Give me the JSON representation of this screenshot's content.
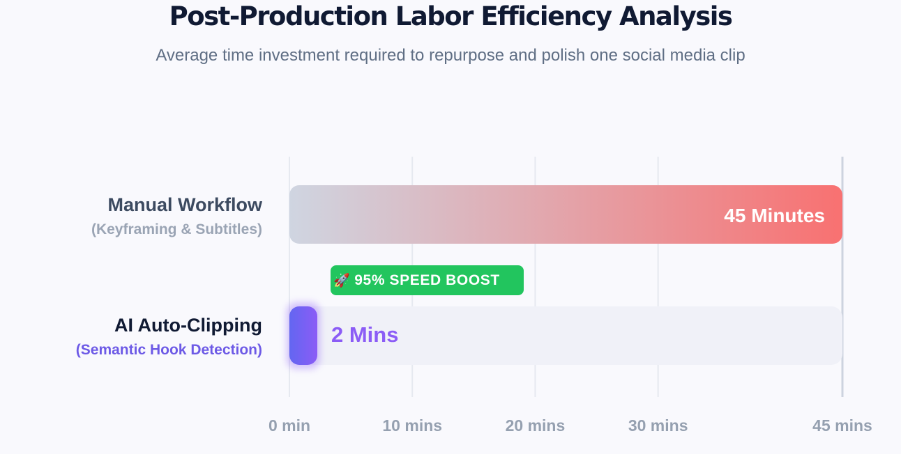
{
  "chart_data": {
    "type": "bar",
    "orientation": "horizontal",
    "title": "Post-Production Labor Efficiency Analysis",
    "subtitle": "Average time investment required to repurpose and polish one social media clip",
    "categories": [
      "Manual Workflow",
      "AI Auto-Clipping"
    ],
    "category_sublabels": [
      "(Keyframing & Subtitles)",
      "(Semantic Hook Detection)"
    ],
    "values": [
      45,
      2
    ],
    "value_labels": [
      "45 Minutes",
      "2 Mins"
    ],
    "xlim": [
      0,
      45
    ],
    "xticks": [
      0,
      10,
      20,
      30,
      45
    ],
    "tick_labels": [
      "0 min",
      "10 mins",
      "20 mins",
      "30 mins",
      "45 mins"
    ],
    "grid": true,
    "colors": {
      "manual_start": "#cfd5e1",
      "manual_end": "#f87171",
      "ai_start": "#6366f1",
      "ai_end": "#8b5cf6",
      "ai_label": "#8b5cf6",
      "ai_sublabel": "#6d5ae6",
      "track": "#f0f1f8",
      "grid": "#e6e9f0",
      "badge": "#22c55e"
    },
    "annotation": {
      "icon": "rocket-icon",
      "text": "95% SPEED BOOST"
    }
  }
}
